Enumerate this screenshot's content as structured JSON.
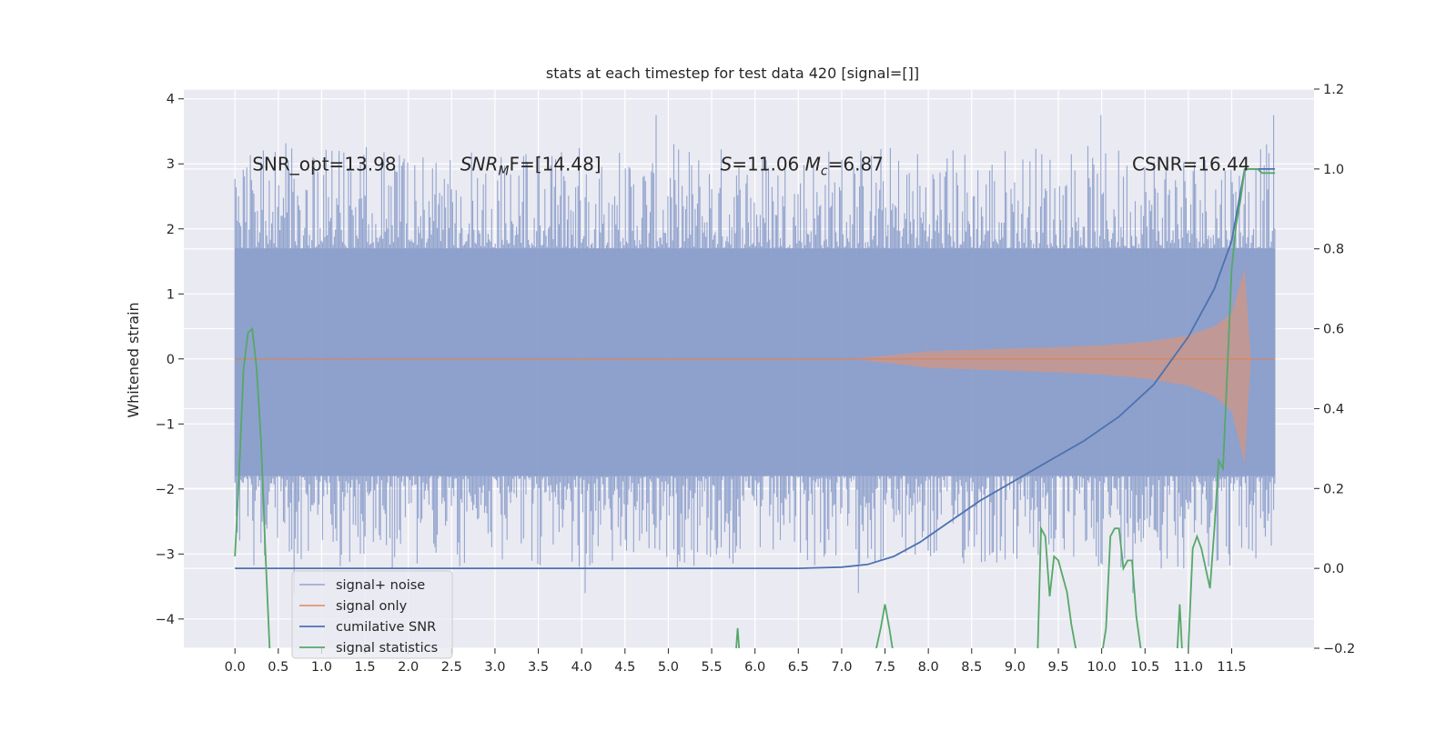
{
  "chart_data": {
    "type": "line",
    "title": "stats at each timestep for test data 420 [signal=[]]",
    "xlabel": "",
    "ylabel": "Whitened strain",
    "y2label": "",
    "xlim": [
      -0.59,
      12.45
    ],
    "ylim": [
      -4.45,
      4.15
    ],
    "y2lim": [
      -0.2,
      1.2
    ],
    "xticks": [
      "0.0",
      "0.5",
      "1.0",
      "1.5",
      "2.0",
      "2.5",
      "3.0",
      "3.5",
      "4.0",
      "4.5",
      "5.0",
      "5.5",
      "6.0",
      "6.5",
      "7.0",
      "7.5",
      "8.0",
      "8.5",
      "9.0",
      "9.5",
      "10.0",
      "10.5",
      "11.0",
      "11.5"
    ],
    "yticks": [
      "−4",
      "−3",
      "−2",
      "−1",
      "0",
      "1",
      "2",
      "3",
      "4"
    ],
    "y2ticks": [
      "−0.2",
      "0.0",
      "0.2",
      "0.4",
      "0.6",
      "0.8",
      "1.0",
      "1.2"
    ],
    "grid": true,
    "legend_position": "lower-left",
    "annotations": [
      {
        "text": "SNR_opt=13.98",
        "x": 0.2,
        "y": 2.9
      },
      {
        "text": "SNR",
        "sub": "M",
        "rest": "F=[14.48]",
        "x": 2.6,
        "y": 2.9
      },
      {
        "text": "S",
        "rest": "=11.06 ",
        "text2": "M",
        "sub": "c",
        "rest2": "=6.87",
        "x": 5.6,
        "y": 2.9
      },
      {
        "text": "CSNR=16.44",
        "x": 10.35,
        "y": 2.9
      }
    ],
    "series": [
      {
        "name": "signal+ noise",
        "axis": "left",
        "color": "#8da0cb",
        "style": "noise-band",
        "x_range": [
          0.0,
          12.0
        ],
        "envelope_upper": 1.7,
        "envelope_lower": -1.8,
        "peak_max": 3.75,
        "peak_min": -3.6
      },
      {
        "name": "signal only",
        "axis": "left",
        "color": "#dd8452",
        "style": "chirp",
        "x": [
          0.0,
          7.2,
          7.5,
          8.0,
          8.5,
          9.0,
          9.5,
          10.0,
          10.5,
          11.0,
          11.3,
          11.5,
          11.65,
          11.72,
          12.0
        ],
        "amplitude": [
          0.0,
          0.01,
          0.05,
          0.12,
          0.14,
          0.16,
          0.18,
          0.21,
          0.26,
          0.36,
          0.5,
          0.7,
          1.4,
          0.0,
          0.0
        ]
      },
      {
        "name": "cumilative SNR",
        "axis": "right",
        "color": "#4c72b0",
        "x": [
          0.0,
          6.5,
          7.0,
          7.3,
          7.6,
          7.9,
          8.2,
          8.6,
          9.0,
          9.4,
          9.8,
          10.2,
          10.6,
          11.0,
          11.3,
          11.5,
          11.65,
          12.0
        ],
        "y": [
          0.0,
          0.0,
          0.003,
          0.01,
          0.03,
          0.065,
          0.11,
          0.17,
          0.22,
          0.27,
          0.32,
          0.38,
          0.46,
          0.58,
          0.7,
          0.82,
          1.0,
          1.0
        ]
      },
      {
        "name": "signal statistics",
        "axis": "right",
        "color": "#55a868",
        "x": [
          0.0,
          0.05,
          0.1,
          0.15,
          0.2,
          0.25,
          0.3,
          0.35,
          0.4,
          0.45,
          5.75,
          5.8,
          5.85,
          7.35,
          7.4,
          7.45,
          7.5,
          7.55,
          7.6,
          7.65,
          9.25,
          9.3,
          9.35,
          9.4,
          9.45,
          9.5,
          9.55,
          9.6,
          9.65,
          9.7,
          9.75,
          9.8,
          9.85,
          10.0,
          10.05,
          10.1,
          10.15,
          10.2,
          10.25,
          10.3,
          10.35,
          10.4,
          10.45,
          10.5,
          10.55,
          10.85,
          10.9,
          10.95,
          11.0,
          11.05,
          11.1,
          11.15,
          11.2,
          11.25,
          11.3,
          11.35,
          11.4,
          11.45,
          11.5,
          11.55,
          11.6,
          11.65,
          11.7,
          11.75,
          11.8,
          11.85,
          11.9,
          11.95,
          12.0
        ],
        "y": [
          0.03,
          0.25,
          0.5,
          0.59,
          0.6,
          0.5,
          0.32,
          0.05,
          -0.2,
          -0.3,
          -0.3,
          -0.15,
          -0.3,
          -0.3,
          -0.2,
          -0.15,
          -0.09,
          -0.15,
          -0.22,
          -0.3,
          -0.3,
          0.1,
          0.08,
          -0.07,
          0.03,
          0.02,
          -0.02,
          -0.06,
          -0.14,
          -0.2,
          -0.3,
          -0.3,
          -0.25,
          -0.22,
          -0.15,
          0.08,
          0.1,
          0.1,
          0.0,
          0.02,
          0.02,
          -0.12,
          -0.2,
          -0.3,
          -0.3,
          -0.3,
          -0.09,
          -0.3,
          -0.2,
          0.05,
          0.08,
          0.05,
          0.0,
          -0.05,
          0.1,
          0.27,
          0.25,
          0.5,
          0.75,
          0.86,
          0.92,
          1.0,
          1.0,
          1.0,
          1.0,
          0.99,
          0.99,
          0.99,
          0.99
        ]
      }
    ]
  }
}
